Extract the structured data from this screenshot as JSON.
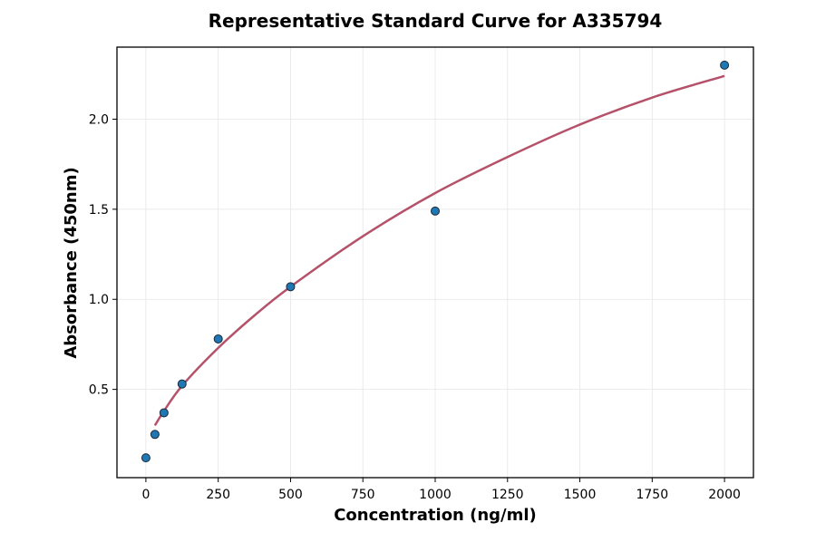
{
  "chart_data": {
    "type": "scatter",
    "title": "Representative Standard Curve for A335794",
    "xlabel": "Concentration (ng/ml)",
    "ylabel": "Absorbance (450nm)",
    "xlim": [
      -100,
      2100
    ],
    "ylim": [
      0.01,
      2.4
    ],
    "xticks": [
      0,
      250,
      500,
      750,
      1000,
      1250,
      1500,
      1750,
      2000
    ],
    "yticks": [
      0.5,
      1.0,
      1.5,
      2.0
    ],
    "ytick_labels": [
      "0.5",
      "1.0",
      "1.5",
      "2.0"
    ],
    "grid": true,
    "points": {
      "x": [
        0,
        31.25,
        62.5,
        125,
        250,
        500,
        1000,
        2000
      ],
      "y": [
        0.12,
        0.25,
        0.37,
        0.53,
        0.78,
        1.07,
        1.49,
        2.3
      ],
      "color": "#1f77b4"
    },
    "fit_curve": {
      "x": [
        31.25,
        62.5,
        125,
        250,
        375,
        500,
        750,
        1000,
        1250,
        1500,
        1750,
        2000
      ],
      "y": [
        0.3,
        0.38,
        0.52,
        0.73,
        0.91,
        1.07,
        1.35,
        1.59,
        1.79,
        1.97,
        2.12,
        2.24
      ],
      "color": "#b5526a"
    }
  }
}
